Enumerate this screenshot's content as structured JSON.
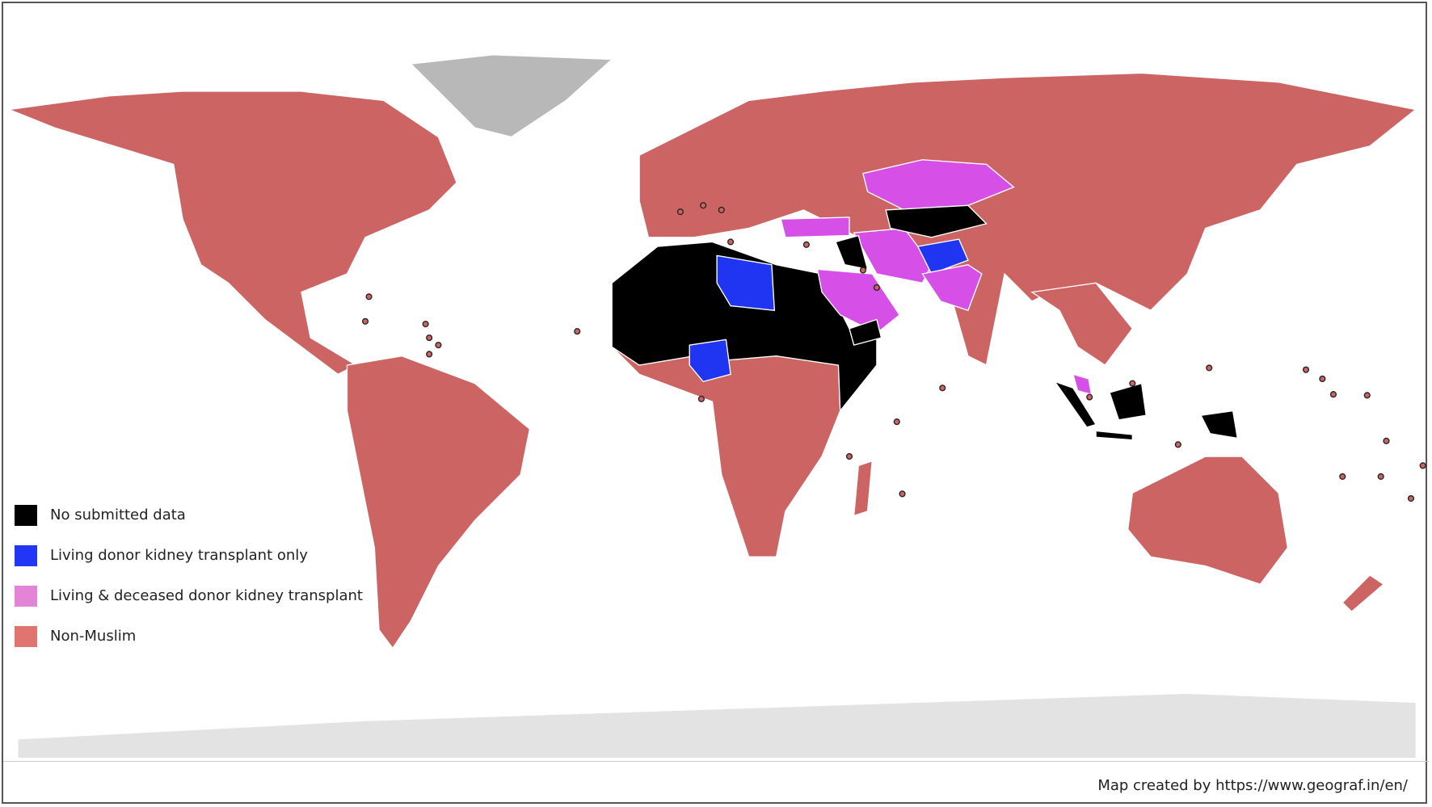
{
  "legend": {
    "items": [
      {
        "label": "No submitted data",
        "color": "#000000"
      },
      {
        "label": "Living donor kidney transplant only",
        "color": "#2236f5"
      },
      {
        "label": "Living & deceased donor kidney transplant",
        "color": "#e384d7"
      },
      {
        "label": "Non-Muslim",
        "color": "#e07570"
      }
    ]
  },
  "map_colors": {
    "no_data": "#000000",
    "living_only": "#1f35f2",
    "living_deceased": "#d64fe6",
    "non_muslim": "#cc6464",
    "no_category": "#b8b8b8",
    "antarctica": "#e3e3e3"
  },
  "credit": "Map created by https://www.geograf.in/en/"
}
